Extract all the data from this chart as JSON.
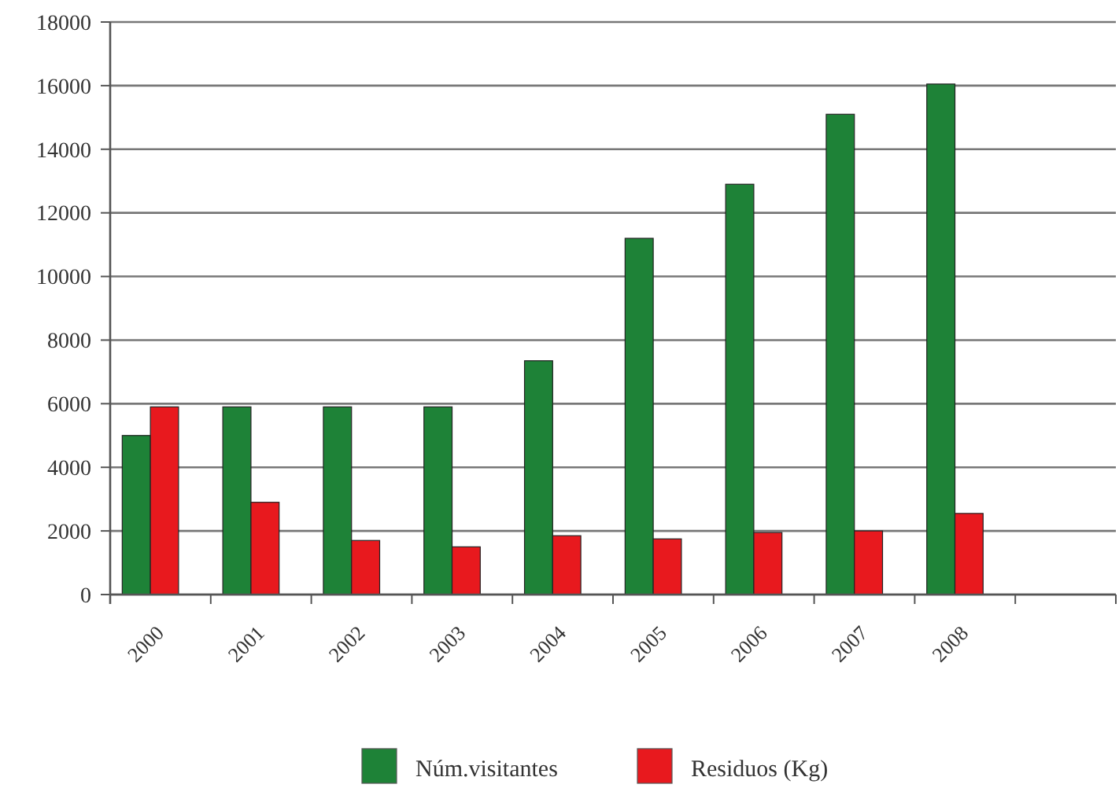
{
  "chart_data": {
    "type": "bar",
    "categories": [
      "2000",
      "2001",
      "2002",
      "2003",
      "2004",
      "2005",
      "2006",
      "2007",
      "2008",
      null
    ],
    "series": [
      {
        "name": "Núm.visitantes",
        "color": "#1e8237",
        "values": [
          5000,
          5900,
          5900,
          5900,
          7350,
          11200,
          12900,
          15100,
          16050,
          null
        ]
      },
      {
        "name": "Residuos (Kg)",
        "color": "#e8191e",
        "values": [
          5900,
          2900,
          1700,
          1500,
          1850,
          1750,
          1950,
          2000,
          2550,
          null
        ]
      }
    ],
    "ylim": [
      0,
      18000
    ],
    "yticks": [
      0,
      2000,
      4000,
      6000,
      8000,
      10000,
      12000,
      14000,
      16000,
      18000
    ],
    "grid": "y",
    "legend": "bottom"
  }
}
